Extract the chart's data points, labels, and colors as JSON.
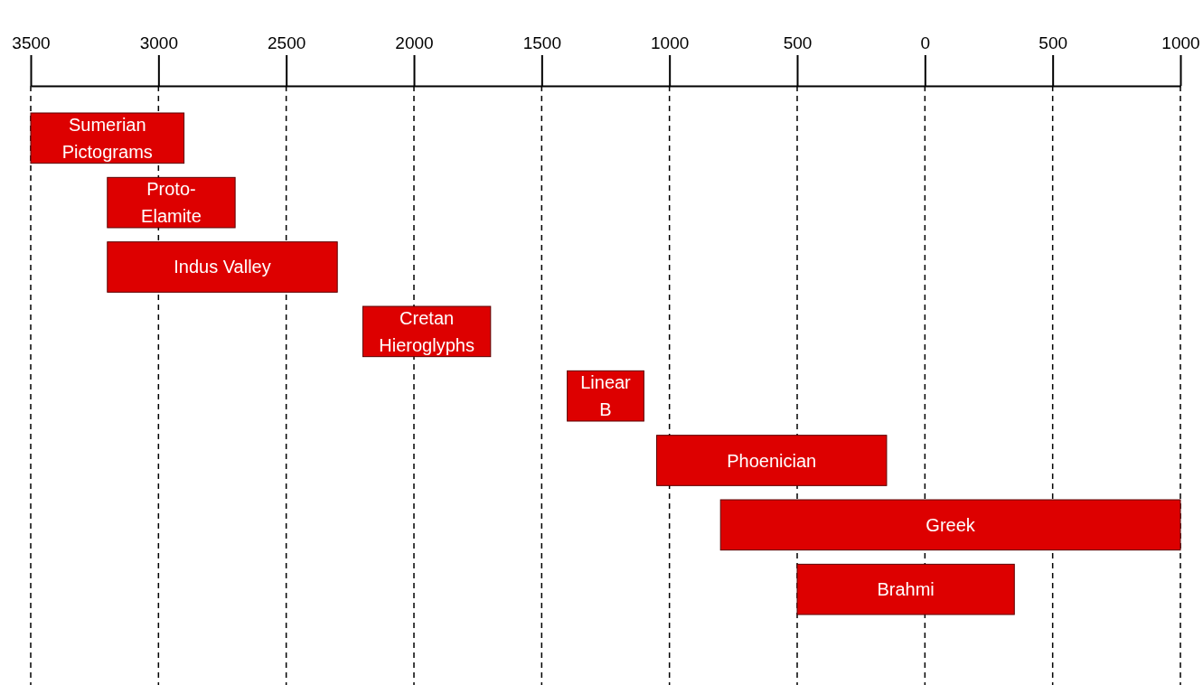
{
  "chart_data": {
    "type": "bar",
    "orientation": "horizontal",
    "categories": [
      "Sumerian Pictograms",
      "Proto-Elamite",
      "Indus Valley",
      "Cretan Hieroglyphs",
      "Linear B",
      "Phoenician",
      "Greek",
      "Brahmi"
    ],
    "base": [
      -3500,
      -3200,
      -3200,
      -2200,
      -1400,
      -1050,
      -800,
      -500
    ],
    "values": [
      600,
      500,
      900,
      500,
      300,
      900,
      1800,
      850
    ],
    "color": "#dd0000",
    "xlim": [
      -3500,
      1000
    ],
    "xticks": [
      {
        "value": -3500,
        "label": "3500"
      },
      {
        "value": -3000,
        "label": "3000"
      },
      {
        "value": -2500,
        "label": "2500"
      },
      {
        "value": -2000,
        "label": "2000"
      },
      {
        "value": -1500,
        "label": "1500"
      },
      {
        "value": -1000,
        "label": "1000"
      },
      {
        "value": -500,
        "label": "500"
      },
      0,
      500,
      1000
    ],
    "grid": "x",
    "tick_labels": "x"
  }
}
